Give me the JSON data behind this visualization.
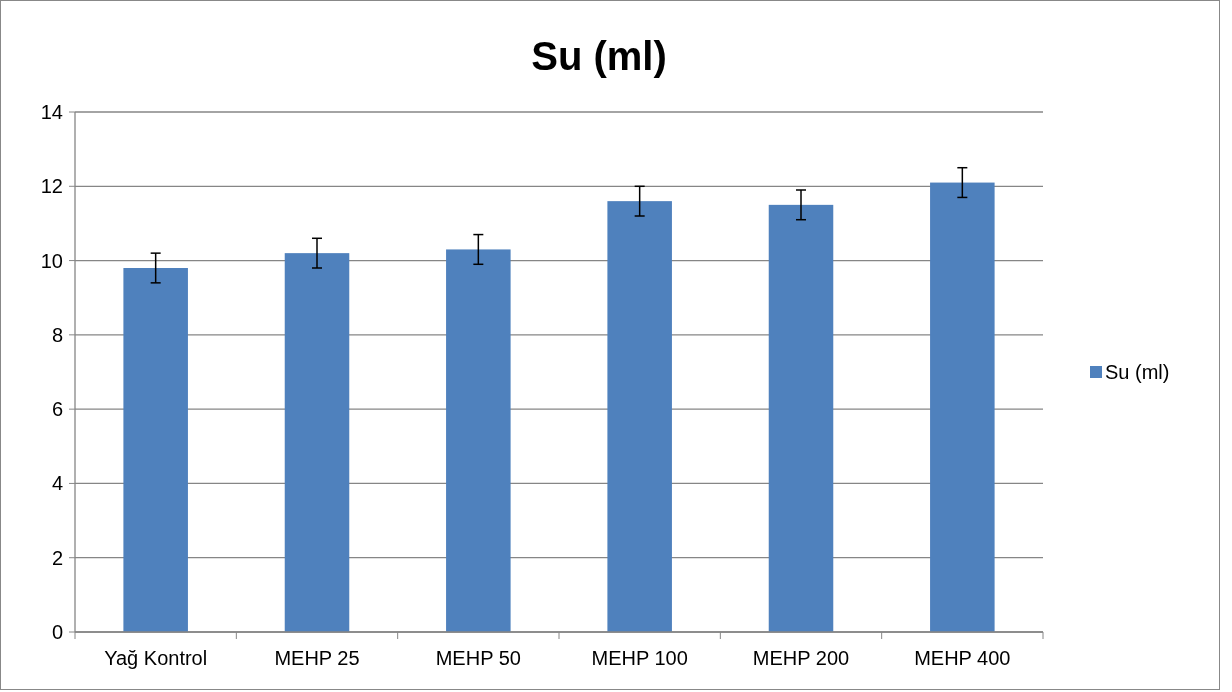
{
  "chart_data": {
    "type": "bar",
    "title": "Su (ml)",
    "categories": [
      "Yağ Kontrol",
      "MEHP 25",
      "MEHP 50",
      "MEHP 100",
      "MEHP 200",
      "MEHP 400"
    ],
    "series": [
      {
        "name": "Su (ml)",
        "color": "#4f81bd",
        "values": [
          9.8,
          10.2,
          10.3,
          11.6,
          11.5,
          12.1
        ],
        "errors": [
          0.4,
          0.4,
          0.4,
          0.4,
          0.4,
          0.4
        ]
      }
    ],
    "ylim": [
      0,
      14
    ],
    "yticks": [
      0,
      2,
      4,
      6,
      8,
      10,
      12,
      14
    ],
    "grid": "y",
    "legend": "right"
  }
}
